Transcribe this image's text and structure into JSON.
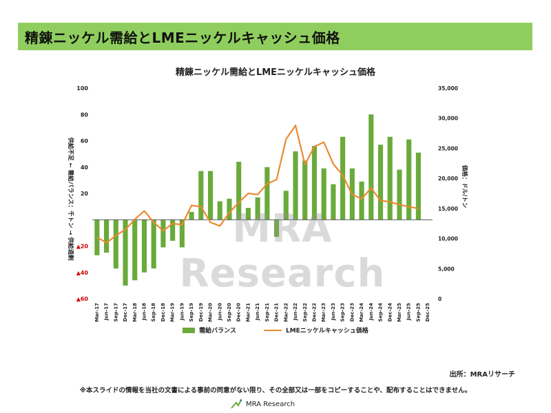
{
  "header": {
    "title": "精錬ニッケル需給とLMEニッケルキャッシュ価格"
  },
  "chart_title": "精錬ニッケル需給とLMEニッケルキャッシュ価格",
  "watermark": "MRA Research",
  "source": "出所：MRAリサーチ",
  "disclaimer": "※本スライドの情報を当社の文書による事前の同意がない限り、その全部又は一部をコピーすることや、配布することはできません。",
  "logo_text": "MRA Research",
  "colors": {
    "bar": "#6aaa3a",
    "line": "#e98a2f",
    "negative_tick": "#cc0000",
    "header_bg": "#8fce5e"
  },
  "chart_data": {
    "type": "bar",
    "title": "精錬ニッケル需給とLMEニッケルキャッシュ価格",
    "categories": [
      "Mar-17",
      "Jun-17",
      "Sep-17",
      "Dec-17",
      "Mar-18",
      "Jun-18",
      "Sep-18",
      "Dec-18",
      "Mar-19",
      "Jun-19",
      "Sep-19",
      "Dec-19",
      "Mar-20",
      "Jun-20",
      "Sep-20",
      "Dec-20",
      "Mar-21",
      "Jun-21",
      "Sep-21",
      "Dec-21",
      "Mar-22",
      "Jun-22",
      "Sep-22",
      "Dec-22",
      "Mar-23",
      "Jun-23",
      "Sep-23",
      "Dec-23",
      "Mar-24",
      "Jun-24",
      "Sep-24",
      "Dec-24",
      "Mar-25",
      "Jun-25",
      "Sep-25",
      "Dec-25"
    ],
    "y_left": {
      "label": "供給不足 ← 需給バランス：千トン → 供給過剰",
      "ylim": [
        -60,
        100
      ],
      "ticks": [
        100,
        80,
        60,
        40,
        20,
        0,
        -20,
        -40,
        -60
      ],
      "tick_labels": [
        "100",
        "80",
        "60",
        "40",
        "20",
        "",
        "▲20",
        "▲40",
        "▲60"
      ]
    },
    "y_right": {
      "label": "価格：ドル/トン",
      "ylim": [
        0,
        35000
      ],
      "ticks": [
        35000,
        30000,
        25000,
        20000,
        15000,
        10000,
        5000,
        0
      ],
      "tick_labels": [
        "35,000",
        "30,000",
        "25,000",
        "20,000",
        "15,000",
        "10,000",
        "5,000",
        "0"
      ]
    },
    "series": [
      {
        "name": "需給バランス",
        "type": "bar",
        "axis": "left",
        "values": [
          -27,
          -25,
          -37,
          -50,
          -46,
          -40,
          -37,
          -21,
          -16,
          -21,
          6,
          37,
          37,
          14,
          16,
          44,
          9,
          17,
          40,
          -13,
          22,
          52,
          45,
          56,
          39,
          27,
          63,
          39,
          29,
          80,
          57,
          63,
          38,
          61,
          51,
          null
        ]
      },
      {
        "name": "LMEニッケルキャッシュ価格",
        "type": "line",
        "axis": "right",
        "values": [
          10200,
          9300,
          10500,
          11500,
          13200,
          14600,
          12700,
          11300,
          12500,
          12300,
          15500,
          15300,
          12700,
          12100,
          14300,
          16000,
          17500,
          17300,
          19100,
          19800,
          26500,
          28800,
          22300,
          25300,
          26000,
          22400,
          20500,
          17300,
          16600,
          18400,
          16300,
          16100,
          15600,
          15300,
          15000,
          null
        ]
      }
    ],
    "legend_position": "bottom",
    "grid": false
  }
}
